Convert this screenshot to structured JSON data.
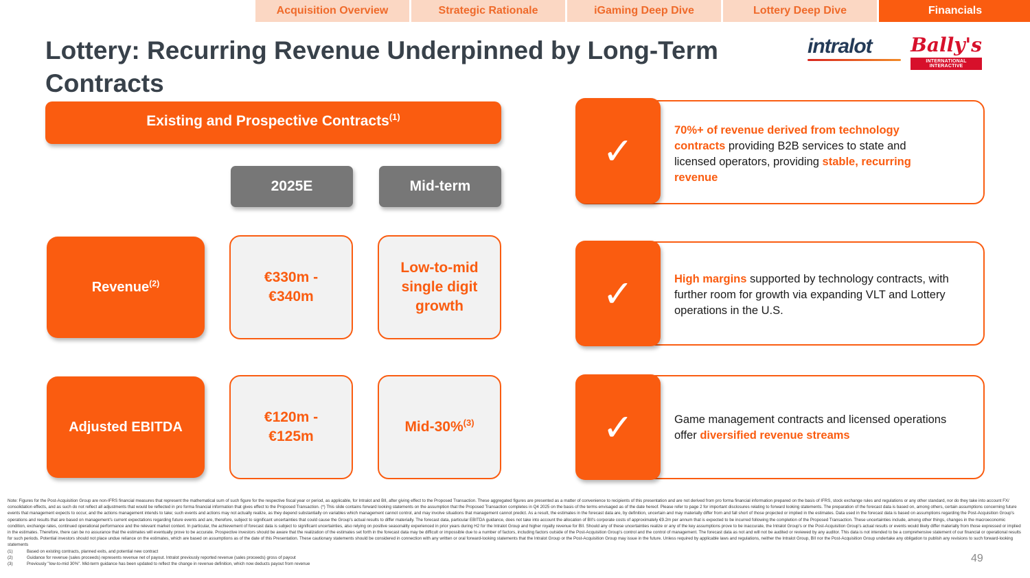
{
  "nav": {
    "tabs": [
      {
        "label": "Acquisition Overview",
        "active": false
      },
      {
        "label": "Strategic Rationale",
        "active": false
      },
      {
        "label": "iGaming Deep Dive",
        "active": false
      },
      {
        "label": "Lottery Deep Dive",
        "active": false
      },
      {
        "label": "Financials",
        "active": true
      }
    ]
  },
  "title": "Lottery: Recurring Revenue Underpinned by Long-Term Contracts",
  "logos": {
    "intralot": "intralot",
    "ballys": "Bally's",
    "ballys_sub": "INTERNATIONAL INTERACTIVE"
  },
  "table": {
    "banner": "Existing and Prospective Contracts",
    "banner_sup": "(1)",
    "col_2025e": "2025E",
    "col_midterm": "Mid-term",
    "revenue": {
      "label": "Revenue",
      "label_sup": "(2)",
      "value_2025e": "€330m - €340m",
      "value_midterm": "Low-to-mid single digit growth"
    },
    "ebitda": {
      "label": "Adjusted EBITDA",
      "value_2025e": "€120m - €125m",
      "value_midterm": "Mid-30%",
      "value_midterm_sup": "(3)"
    }
  },
  "cards": {
    "card1": {
      "hl1": "70%+ of revenue derived from technology contracts",
      "text1": " providing B2B services to state and licensed operators, providing ",
      "hl2": "stable, recurring revenue"
    },
    "card2": {
      "hl1": "High margins",
      "text1": " supported by technology contracts, with further room for growth via expanding VLT and Lottery operations in the U.S."
    },
    "card3": {
      "text1": "Game management contracts and licensed operations offer ",
      "hl1": "diversified revenue streams"
    }
  },
  "check_glyph": "✓",
  "notes": {
    "main": "Note: Figures for the Post-Acquisition Group are non-IFRS financial measures that represent the mathematical sum of such figure for the respective fiscal year or period, as applicable, for Intralot and BII, after giving effect to the Proposed Transaction. These aggregated figures are presented as a matter of convenience to recipients of this presentation and are not derived from pro forma financial information prepared on the basis of IFRS, stock exchange rules and regulations or any other standard, nor do they take into account FX/ consolidation effects, and as such do not reflect all adjustments that would be reflected in pro forma financial information that gives effect to the Proposed Transaction. (*) This slide contains forward looking statements on the assumption that the Proposed Transaction completes in Q4 2025 on the basis of the terms envisaged as of the date hereof. Please refer to page 2 for important disclosures relating to forward looking statements. The preparation of the forecast data is based on, among others, certain assumptions concerning future events that management expects to occur, and the actions management intends to take; such events and actions may not actually realize, as they depend substantially on variables which management cannot control, and may involve situations that management cannot predict. As a result, the estimates in the forecast data are, by definition, uncertain and may materially differ from and fall short of those projected or implied in the estimates. Data used in the forecast data is based on assumptions regarding the Post-Acquisition Group's operations and results that are based on management's current expectations regarding future events and are, therefore, subject to significant uncertainties that could cause the Group's actual results to differ materially. The forecast data, particular EBITDA guidance, does not take into account the allocation of BII's corporate costs of approximately €9.2m per annum that is expected to be incurred following the completion of the Proposed Transaction. These uncertainties include, among other things, changes in the macroeconomic condition, exchange rates, continued operational performance and the relevant market context. In particular, the achievement of forecast data is subject to significant uncertainties, also relying on positive seasonality experienced in prior years during H2 for the Intralot Group and higher royalty revenue for BII. Should any of these uncertainties realize or any of the key assumptions prove to be inaccurate, the Intralot Group's or the Post-Acquisition Group's actual results or events would likely differ materially from those expressed or implied in the estimates. Therefore, there can be no assurance that the estimates will eventually prove to be accurate. Prospective investors should be aware that the realization of the estimates set forth in the forecast data may be difficult or impossible due to a number of factors, including factors outside of the Post-Acquisition Group's control and the control of management. The forecast data as not and will not be audited or reviewed by any auditor. This data is not intended to be a comprehensive statement of our financial or operational results for such periods. Potential investors should not place undue reliance on the estimates, which are based on assumptions as of the date of this Presentation. These cautionary statements should be considered in connection with any written or oral forward-looking statements that the Intralot Group or the Post-Acquisition Group may issue in the future. Unless required by applicable laws and regulations, neither the Intralot Group, BII nor the Post-Acquisition Group undertake any obligation to publish any revisions to such forward-looking statements",
    "footnotes": [
      {
        "n": "(1)",
        "text": "Based on existing contracts, planned exits, and potential new contract"
      },
      {
        "n": "(2)",
        "text": "Guidance for revenue (sales proceeds) represents revenue net of payout. Intralot previously reported revenue (sales proceeds) gross of payout"
      },
      {
        "n": "(3)",
        "text": "Previously \"low-to-mid 30%\". Mid-term guidance has been updated to reflect the change in revenue definition, which now deducts payout from revenue"
      }
    ]
  },
  "page_number": "49",
  "colors": {
    "accent": "#fa5c10",
    "tab_inactive_bg": "#fbd7c3",
    "header_gray": "#777777",
    "title": "#38414a"
  }
}
